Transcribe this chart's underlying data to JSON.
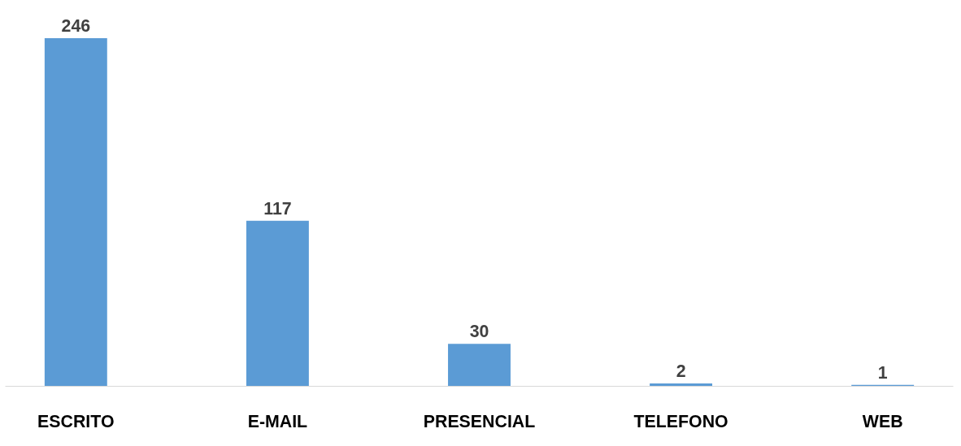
{
  "chart_data": {
    "type": "bar",
    "categories": [
      "ESCRITO",
      "E-MAIL",
      "PRESENCIAL",
      "TELEFONO",
      "WEB"
    ],
    "values": [
      246,
      117,
      30,
      2,
      1
    ],
    "color": "#5b9bd5",
    "data_labels": true
  }
}
